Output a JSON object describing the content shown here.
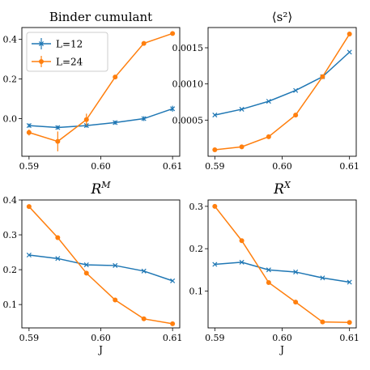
{
  "colors": {
    "L12": "#1f77b4",
    "L24": "#ff7f0e"
  },
  "chart_data": [
    {
      "type": "line",
      "title": "Binder cumulant",
      "xlabel": "",
      "ylabel": "",
      "x": [
        0.59,
        0.594,
        0.598,
        0.602,
        0.606,
        0.61
      ],
      "xlim": [
        0.589,
        0.611
      ],
      "ylim": [
        -0.19,
        0.46
      ],
      "xticks": [
        "0.59",
        "0.60",
        "0.61"
      ],
      "xtick_values": [
        0.59,
        0.6,
        0.61
      ],
      "yticks": [
        "0.0",
        "0.2",
        "0.4"
      ],
      "ytick_values": [
        0.0,
        0.2,
        0.4
      ],
      "legend": {
        "position": "top-left",
        "entries": [
          "L=12",
          "L=24"
        ]
      },
      "series": [
        {
          "name": "L=12",
          "marker": "x",
          "values": [
            -0.035,
            -0.045,
            -0.035,
            -0.02,
            0.0,
            0.05
          ],
          "errors": [
            0.01,
            0.01,
            0.01,
            0.01,
            0.012,
            0.015
          ]
        },
        {
          "name": "L=24",
          "marker": "o",
          "values": [
            -0.07,
            -0.115,
            -0.005,
            0.21,
            0.38,
            0.43
          ],
          "errors": [
            0.015,
            0.05,
            0.03,
            0.01,
            0.01,
            0.01
          ]
        }
      ]
    },
    {
      "type": "line",
      "title": "⟨s²⟩",
      "xlabel": "",
      "ylabel": "",
      "x": [
        0.59,
        0.594,
        0.598,
        0.602,
        0.606,
        0.61
      ],
      "xlim": [
        0.589,
        0.611
      ],
      "ylim": [
        0.0,
        0.00178
      ],
      "xticks": [
        "0.59",
        "0.60",
        "0.61"
      ],
      "xtick_values": [
        0.59,
        0.6,
        0.61
      ],
      "yticks": [
        "0.0005",
        "0.0010",
        "0.0015"
      ],
      "ytick_values": [
        0.0005,
        0.001,
        0.0015
      ],
      "series": [
        {
          "name": "L=12",
          "marker": "x",
          "values": [
            0.00057,
            0.00065,
            0.00076,
            0.00091,
            0.0011,
            0.00144
          ]
        },
        {
          "name": "L=24",
          "marker": "o",
          "values": [
            9e-05,
            0.00013,
            0.00027,
            0.00057,
            0.0011,
            0.00169
          ]
        }
      ]
    },
    {
      "type": "line",
      "title": "R",
      "title_sup": "M",
      "xlabel": "J",
      "ylabel": "",
      "x": [
        0.59,
        0.594,
        0.598,
        0.602,
        0.606,
        0.61
      ],
      "xlim": [
        0.589,
        0.611
      ],
      "ylim": [
        0.033,
        0.4
      ],
      "xticks": [
        "0.59",
        "0.60",
        "0.61"
      ],
      "xtick_values": [
        0.59,
        0.6,
        0.61
      ],
      "yticks": [
        "0.1",
        "0.2",
        "0.3",
        "0.4"
      ],
      "ytick_values": [
        0.1,
        0.2,
        0.3,
        0.4
      ],
      "series": [
        {
          "name": "L=12",
          "marker": "x",
          "values": [
            0.242,
            0.232,
            0.214,
            0.212,
            0.196,
            0.168
          ]
        },
        {
          "name": "L=24",
          "marker": "o",
          "values": [
            0.381,
            0.292,
            0.19,
            0.113,
            0.059,
            0.045
          ]
        }
      ]
    },
    {
      "type": "line",
      "title": "R",
      "title_sup": "X",
      "xlabel": "J",
      "ylabel": "",
      "x": [
        0.59,
        0.594,
        0.598,
        0.602,
        0.606,
        0.61
      ],
      "xlim": [
        0.589,
        0.611
      ],
      "ylim": [
        0.013,
        0.315
      ],
      "xticks": [
        "0.59",
        "0.60",
        "0.61"
      ],
      "xtick_values": [
        0.59,
        0.6,
        0.61
      ],
      "yticks": [
        "0.1",
        "0.2",
        "0.3"
      ],
      "ytick_values": [
        0.1,
        0.2,
        0.3
      ],
      "series": [
        {
          "name": "L=12",
          "marker": "x",
          "values": [
            0.163,
            0.168,
            0.15,
            0.145,
            0.131,
            0.121
          ]
        },
        {
          "name": "L=24",
          "marker": "o",
          "values": [
            0.3,
            0.219,
            0.12,
            0.074,
            0.027,
            0.026
          ]
        }
      ]
    }
  ]
}
